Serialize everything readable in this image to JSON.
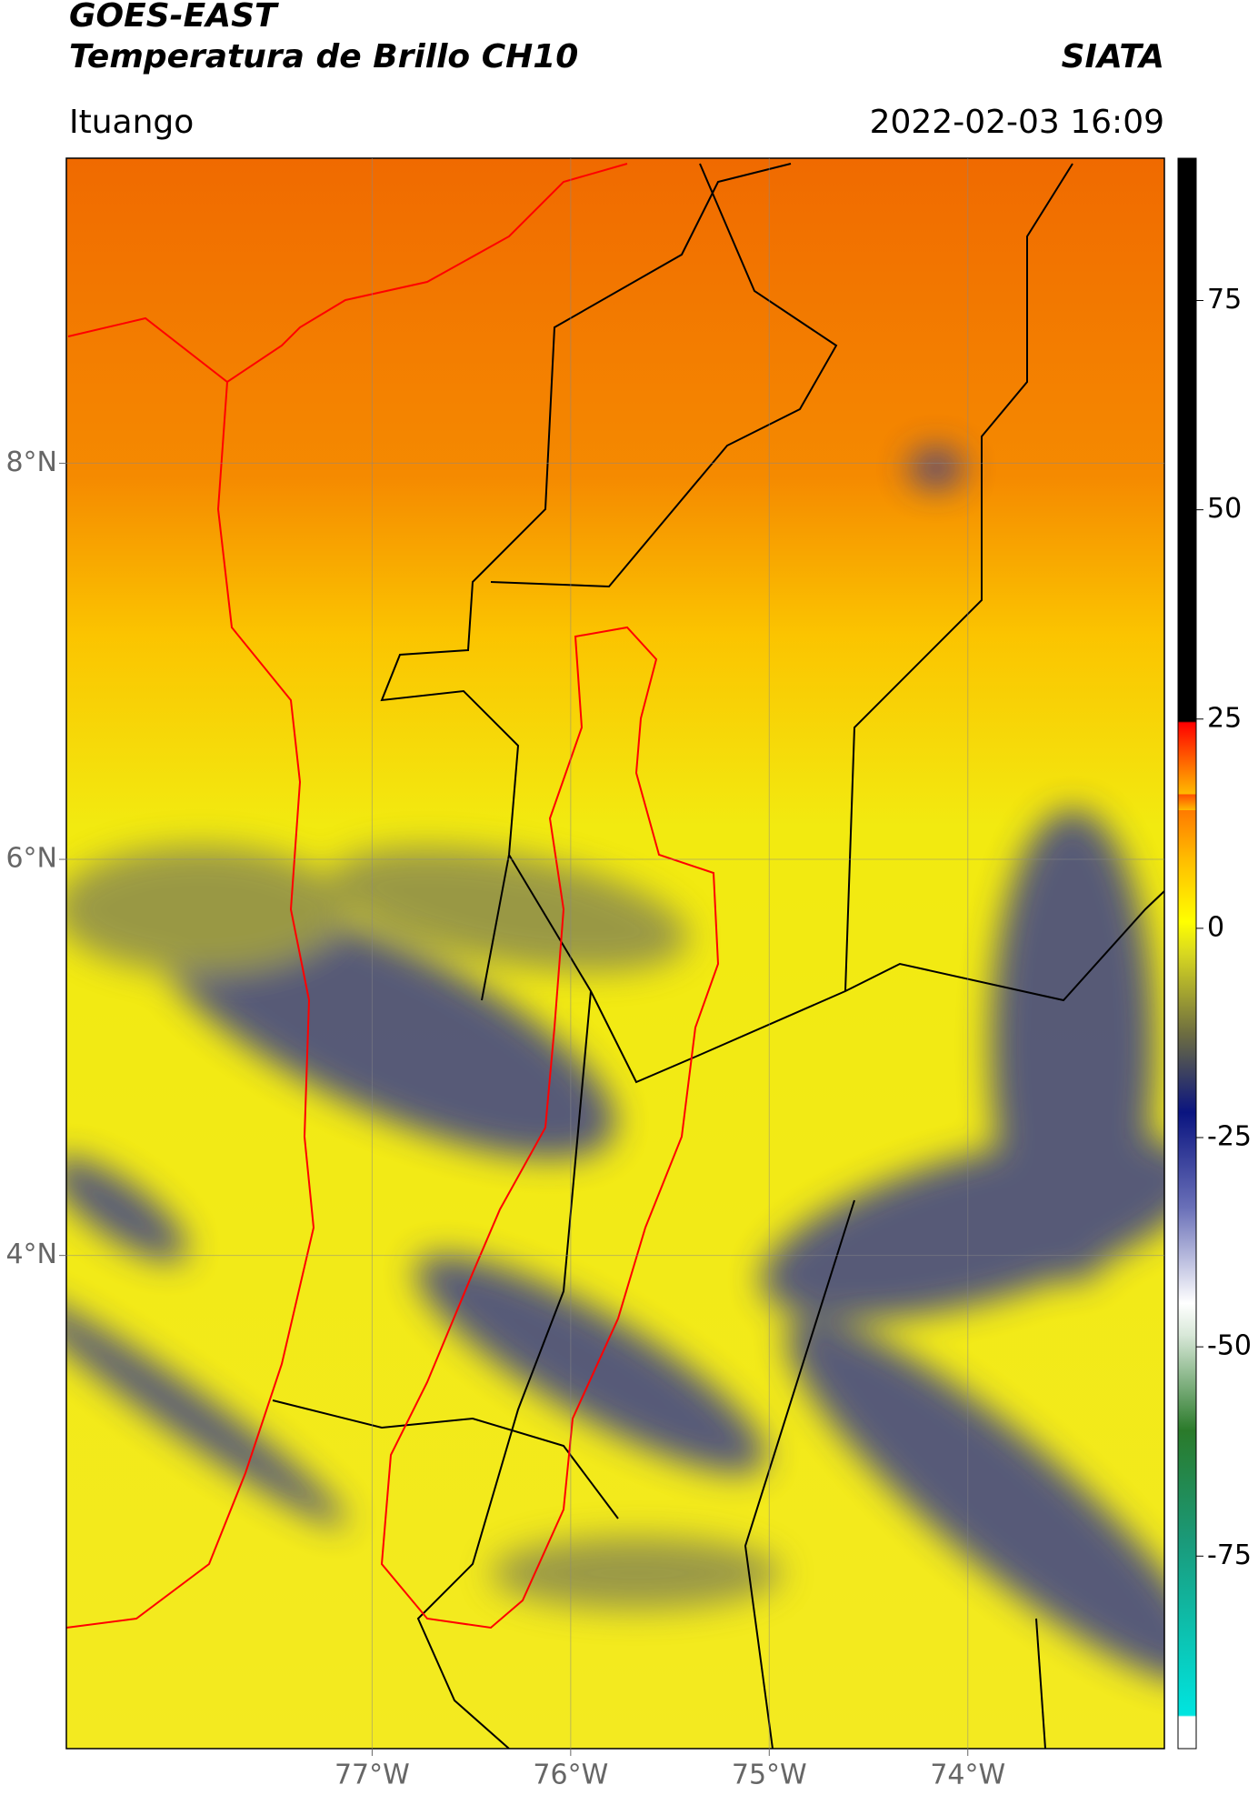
{
  "header": {
    "satellite": "GOES-EAST",
    "product": "Temperatura de Brillo CH10",
    "source": "SIATA",
    "region": "Ituango",
    "datetime": "2022-02-03 16:09"
  },
  "map": {
    "xlim": [
      -78.54,
      -73.01
    ],
    "ylim": [
      1.51,
      9.54
    ],
    "xticks": [
      {
        "value": -77,
        "label": "77°W"
      },
      {
        "value": -76,
        "label": "76°W"
      },
      {
        "value": -75,
        "label": "75°W"
      },
      {
        "value": -74,
        "label": "74°W"
      }
    ],
    "yticks": [
      {
        "value": 8,
        "label": "8°N"
      },
      {
        "value": 6,
        "label": "6°N"
      },
      {
        "value": 4,
        "label": "4°N"
      }
    ],
    "grid": true
  },
  "colorbar": {
    "lim": [
      -98,
      92
    ],
    "ticks": [
      75,
      50,
      25,
      0,
      -25,
      -50,
      -75
    ]
  }
}
